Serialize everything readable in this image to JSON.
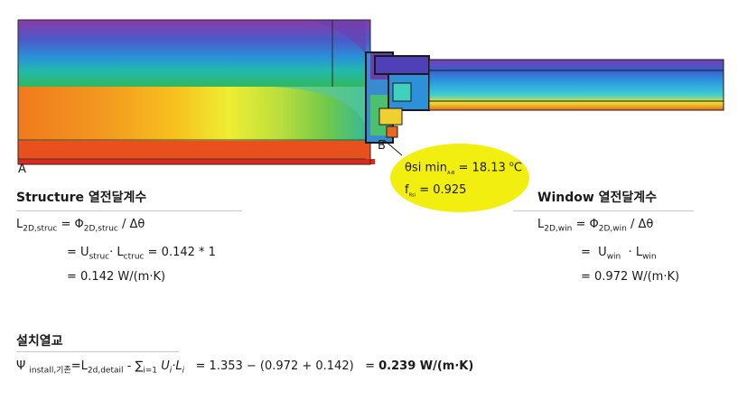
{
  "figure": {
    "label_a": "A",
    "label_b": "B",
    "callout": {
      "theta_symbol": "θ",
      "theta_main": "si min",
      "theta_sub": "A-B",
      "theta_value": "= 18.13",
      "theta_unit_sup": "o",
      "theta_unit": "C",
      "f_main": "f",
      "f_sub": "Rsi",
      "f_value": "= 0.925"
    }
  },
  "structure": {
    "heading": "Structure 열전달계수",
    "eq1": {
      "L": "L",
      "L_sub": "2D,struc",
      "eq": "=",
      "phi": "Φ",
      "phi_sub": "2D,struc",
      "div": "/ Δθ"
    },
    "eq2": {
      "eq": "=",
      "u": "U",
      "u_sub": "struc",
      "dot": "·",
      "l": "L",
      "l_sub": "ctruc",
      "rest": " = 0.142 * 1"
    },
    "eq3": {
      "text": "= 0.142 W/(m·K)"
    }
  },
  "window": {
    "heading": "Window 열전달계수",
    "eq1": {
      "L": "L",
      "L_sub": "2D,win",
      "eq": "=",
      "phi": "Φ",
      "phi_sub": "2D,win",
      "div": "/ Δθ"
    },
    "eq2": {
      "eq": "=",
      "u": "U",
      "u_sub": "win",
      "dot": "·",
      "l": "L",
      "l_sub": "win"
    },
    "eq3": {
      "text": "= 0.972 W/(m·K)"
    }
  },
  "install": {
    "heading": "설치열교",
    "psi": "Ψ",
    "psi_sub": "install,기존",
    "eq": "=",
    "l": "L",
    "l_sub": "2d,detail",
    "minus": "-",
    "sum": "∑",
    "sum_sub": "i=1",
    "ui": "U",
    "ui_sub": "i",
    "dot": "·",
    "li": "L",
    "li_sub": "i",
    "calc": "= 1.353 − (0.972 + 0.142)",
    "result_eq": "=",
    "result": "0.239 W/(m·K)"
  }
}
